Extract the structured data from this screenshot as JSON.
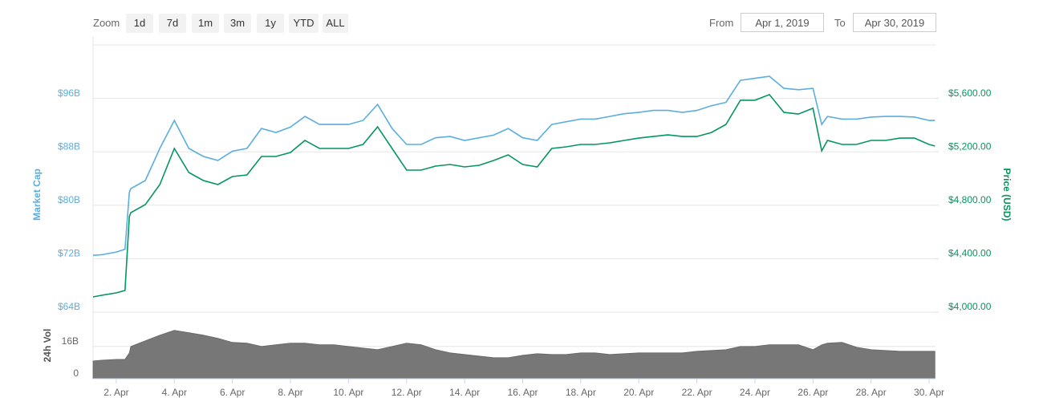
{
  "controls": {
    "zoom_label": "Zoom",
    "zoom_buttons": [
      "1d",
      "7d",
      "1m",
      "3m",
      "1y",
      "YTD",
      "ALL"
    ],
    "from_label": "From",
    "from_value": "Apr 1, 2019",
    "to_label": "To",
    "to_value": "Apr 30, 2019"
  },
  "chart_data": [
    {
      "type": "line",
      "ylabel": "Market Cap",
      "y2label": "Price (USD)",
      "x": [
        1.2,
        1.5,
        2.0,
        2.3,
        2.45,
        2.5,
        3.0,
        3.5,
        4.0,
        4.5,
        5.0,
        5.5,
        6.0,
        6.5,
        7.0,
        7.5,
        8.0,
        8.5,
        9.0,
        9.5,
        10.0,
        10.5,
        11.0,
        11.5,
        12.0,
        12.5,
        13.0,
        13.5,
        14.0,
        14.5,
        15.0,
        15.5,
        16.0,
        16.5,
        17.0,
        17.5,
        18.0,
        18.5,
        19.0,
        19.5,
        20.0,
        20.5,
        21.0,
        21.5,
        22.0,
        22.5,
        23.0,
        23.5,
        24.0,
        24.5,
        25.0,
        25.5,
        26.0,
        26.3,
        26.5,
        27.0,
        27.5,
        28.0,
        28.5,
        29.0,
        29.5,
        30.0,
        30.2
      ],
      "series": [
        {
          "color": "#5aaee0",
          "axis": "y",
          "values": [
            72.5,
            72.6,
            73.0,
            73.4,
            81.9,
            82.5,
            83.7,
            88.5,
            92.7,
            88.5,
            87.3,
            86.7,
            88.1,
            88.5,
            91.5,
            90.9,
            91.7,
            93.3,
            92.1,
            92.1,
            92.1,
            92.7,
            95.1,
            91.5,
            89.1,
            89.1,
            90.1,
            90.3,
            89.7,
            90.1,
            90.5,
            91.5,
            90.1,
            89.7,
            92.1,
            92.5,
            92.9,
            92.9,
            93.3,
            93.7,
            93.9,
            94.2,
            94.2,
            93.9,
            94.2,
            94.9,
            95.4,
            98.7,
            99.0,
            99.3,
            97.5,
            97.3,
            97.5,
            92.1,
            93.3,
            92.9,
            92.9,
            93.2,
            93.3,
            93.3,
            93.2,
            92.7,
            92.7
          ]
        },
        {
          "color": "#04965f",
          "axis": "y2",
          "values": [
            4114,
            4126,
            4144,
            4162,
            4715,
            4745,
            4805,
            4955,
            5225,
            5045,
            4985,
            4955,
            5015,
            5027,
            5165,
            5165,
            5195,
            5285,
            5225,
            5225,
            5225,
            5255,
            5387,
            5225,
            5063,
            5063,
            5093,
            5105,
            5087,
            5099,
            5135,
            5177,
            5105,
            5087,
            5225,
            5237,
            5255,
            5255,
            5267,
            5285,
            5303,
            5315,
            5327,
            5315,
            5315,
            5345,
            5405,
            5586,
            5586,
            5628,
            5495,
            5483,
            5526,
            5207,
            5285,
            5255,
            5255,
            5285,
            5285,
            5303,
            5303,
            5255,
            5243
          ]
        }
      ],
      "xlim": [
        1.2,
        30.22
      ],
      "ylim": [
        64,
        104
      ],
      "yticks": [
        {
          "value": 64,
          "label": "$64B"
        },
        {
          "value": 72,
          "label": "$72B"
        },
        {
          "value": 80,
          "label": "$80B"
        },
        {
          "value": 88,
          "label": "$88B"
        },
        {
          "value": 96,
          "label": "$96B"
        }
      ],
      "y2lim": [
        4000,
        6000
      ],
      "y2ticks": [
        {
          "value": 4000,
          "label": "$4,000.00"
        },
        {
          "value": 4400,
          "label": "$4,400.00"
        },
        {
          "value": 4800,
          "label": "$4,800.00"
        },
        {
          "value": 5200,
          "label": "$5,200.00"
        },
        {
          "value": 5600,
          "label": "$5,600.00"
        }
      ],
      "grid": true
    },
    {
      "type": "area",
      "ylabel": "24h Vol",
      "color": "#777777",
      "x": [
        1.2,
        1.5,
        2.0,
        2.3,
        2.45,
        2.5,
        3.0,
        3.5,
        4.0,
        4.5,
        5.0,
        5.5,
        6.0,
        6.5,
        7.0,
        7.5,
        8.0,
        8.5,
        9.0,
        9.5,
        10.0,
        10.5,
        11.0,
        11.5,
        12.0,
        12.5,
        13.0,
        13.5,
        14.0,
        14.5,
        15.0,
        15.5,
        16.0,
        16.5,
        17.0,
        17.5,
        18.0,
        18.5,
        19.0,
        19.5,
        20.0,
        20.5,
        21.0,
        21.5,
        22.0,
        22.5,
        23.0,
        23.5,
        24.0,
        24.5,
        25.0,
        25.5,
        26.0,
        26.3,
        26.5,
        27.0,
        27.5,
        28.0,
        28.5,
        29.0,
        29.5,
        30.0,
        30.2
      ],
      "values": [
        8.8,
        9.2,
        9.6,
        9.6,
        12.8,
        16,
        18.8,
        21.6,
        24,
        22.8,
        21.6,
        20,
        18,
        17.6,
        16,
        16.8,
        17.6,
        17.6,
        16.8,
        16.8,
        16,
        15.2,
        14.4,
        16,
        17.6,
        16.8,
        14.4,
        12.8,
        12,
        11.2,
        10.4,
        10.4,
        11.6,
        12.4,
        12,
        12,
        12.8,
        12.8,
        12,
        12.4,
        12.8,
        12.8,
        12.8,
        12.8,
        13.6,
        14,
        14.4,
        16,
        16,
        16.8,
        16.8,
        16.8,
        14.4,
        16.8,
        17.6,
        18,
        15.6,
        14.4,
        14,
        13.6,
        13.6,
        13.6,
        13.6
      ],
      "xlim": [
        1.2,
        30.22
      ],
      "ylim": [
        0,
        33
      ],
      "yticks": [
        0,
        {
          "value": 16,
          "label": "16B"
        }
      ],
      "xticks": [
        {
          "value": 2,
          "label": "2. Apr"
        },
        {
          "value": 4,
          "label": "4. Apr"
        },
        {
          "value": 6,
          "label": "6. Apr"
        },
        {
          "value": 8,
          "label": "8. Apr"
        },
        {
          "value": 10,
          "label": "10. Apr"
        },
        {
          "value": 12,
          "label": "12. Apr"
        },
        {
          "value": 14,
          "label": "14. Apr"
        },
        {
          "value": 16,
          "label": "16. Apr"
        },
        {
          "value": 18,
          "label": "18. Apr"
        },
        {
          "value": 20,
          "label": "20. Apr"
        },
        {
          "value": 22,
          "label": "22. Apr"
        },
        {
          "value": 24,
          "label": "24. Apr"
        },
        {
          "value": 26,
          "label": "26. Apr"
        },
        {
          "value": 28,
          "label": "28. Apr"
        },
        {
          "value": 30,
          "label": "30. Apr"
        }
      ],
      "grid": true
    }
  ]
}
